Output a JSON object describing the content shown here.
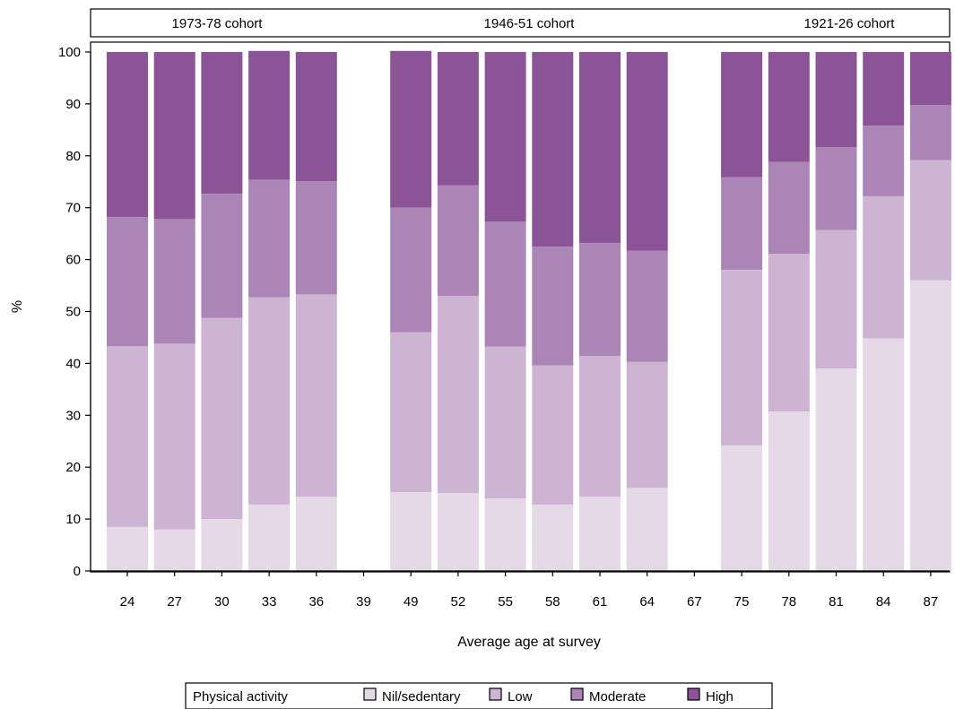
{
  "chart_data": {
    "type": "bar",
    "stacked": true,
    "title": "",
    "xlabel": "Average age at survey",
    "ylabel": "%",
    "ylim": [
      0,
      100
    ],
    "yticks": [
      0,
      10,
      20,
      30,
      40,
      50,
      60,
      70,
      80,
      90,
      100
    ],
    "categories": [
      "24",
      "27",
      "30",
      "33",
      "36",
      "39",
      "49",
      "52",
      "55",
      "58",
      "61",
      "64",
      "67",
      "75",
      "78",
      "81",
      "84",
      "87"
    ],
    "cohorts": [
      "1973-78 cohort",
      "1946-51 cohort",
      "1921-26 cohort"
    ],
    "cohort_members": [
      [
        "24",
        "27",
        "30",
        "33",
        "36",
        "39"
      ],
      [
        "49",
        "52",
        "55",
        "58",
        "61",
        "64",
        "67"
      ],
      [
        "75",
        "78",
        "81",
        "84",
        "87"
      ]
    ],
    "legend": {
      "title": "Physical activity",
      "placement": "bottom-center"
    },
    "series": [
      {
        "name": "Nil/sedentary",
        "color": "#e5d9e8",
        "values": [
          8.5,
          8,
          10,
          12.8,
          14.3,
          null,
          15.2,
          15,
          14,
          12.8,
          14.3,
          16,
          null,
          24.2,
          30.7,
          39,
          44.8,
          56
        ]
      },
      {
        "name": "Low",
        "color": "#cdb4d3",
        "values": [
          34.8,
          35.8,
          38.8,
          39.9,
          39,
          null,
          30.8,
          38,
          29.2,
          26.8,
          27.1,
          24.3,
          null,
          33.8,
          30.4,
          26.7,
          27.4,
          23.2
        ]
      },
      {
        "name": "Moderate",
        "color": "#ab85b5",
        "values": [
          24.9,
          24,
          23.9,
          22.7,
          21.8,
          null,
          24,
          21.3,
          24.1,
          22.9,
          21.8,
          21.4,
          null,
          17.9,
          17.7,
          16,
          13.6,
          10.6
        ]
      },
      {
        "name": "High",
        "color": "#8a5496",
        "values": [
          31.8,
          32.2,
          27.3,
          24.8,
          24.9,
          null,
          30.2,
          25.7,
          32.7,
          37.5,
          36.8,
          38.3,
          null,
          24.1,
          21.2,
          18.3,
          14.2,
          10.2
        ]
      }
    ]
  }
}
